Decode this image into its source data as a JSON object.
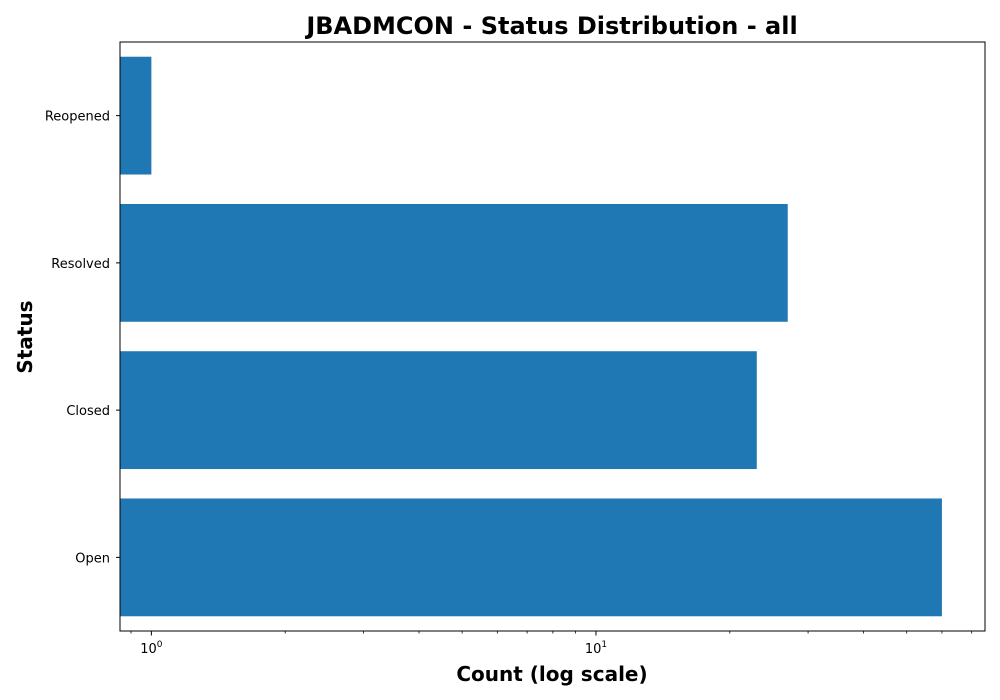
{
  "chart_data": {
    "type": "bar",
    "orientation": "horizontal",
    "title": "JBADMCON - Status Distribution - all",
    "xlabel": "Count (log scale)",
    "ylabel": "Status",
    "x_scale": "log",
    "xlim": [
      0.85,
      75
    ],
    "x_major_ticks": [
      {
        "value": 1,
        "base": "10",
        "exp": "0"
      },
      {
        "value": 10,
        "base": "10",
        "exp": "1"
      }
    ],
    "categories": [
      "Open",
      "Closed",
      "Resolved",
      "Reopened"
    ],
    "values": [
      60,
      23,
      27,
      1
    ],
    "bar_color": "#1f77b4",
    "grid": false,
    "legend": "none"
  }
}
